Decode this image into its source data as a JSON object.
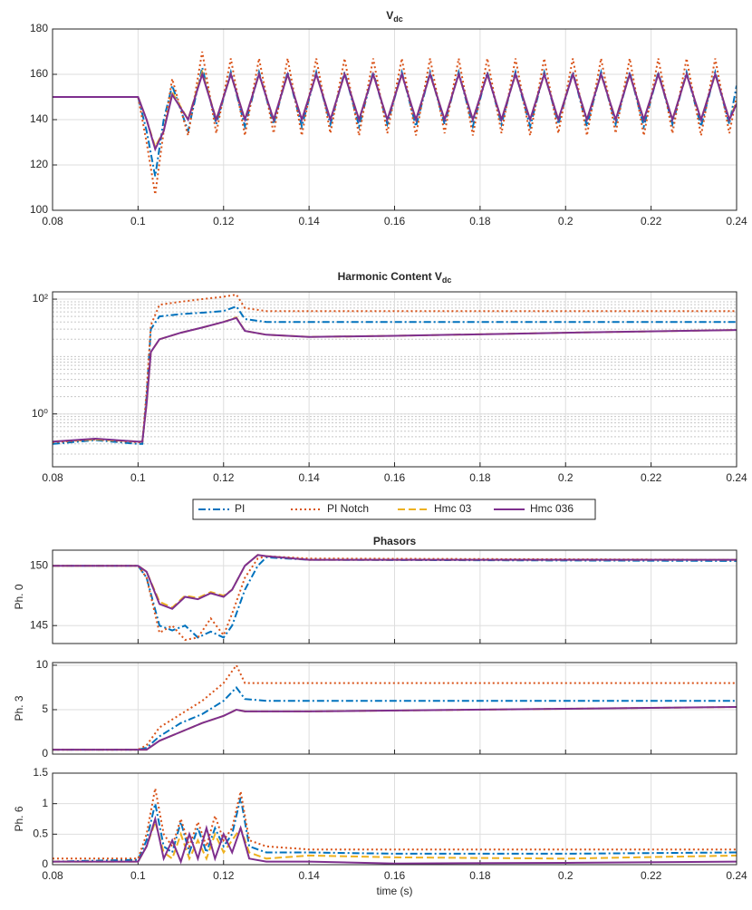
{
  "chart_data": [
    {
      "type": "line",
      "title": "V",
      "title_subscript": "dc",
      "x": [
        0.08,
        0.09,
        0.1,
        0.102,
        0.104,
        0.106,
        0.108,
        0.1117,
        0.115,
        0.1183,
        0.1217,
        0.125,
        0.1283,
        0.1317,
        0.135,
        0.1383,
        0.1417,
        0.145,
        0.1483,
        0.1517,
        0.155,
        0.1583,
        0.1617,
        0.165,
        0.1683,
        0.1717,
        0.175,
        0.1783,
        0.1817,
        0.185,
        0.1883,
        0.1917,
        0.195,
        0.1983,
        0.2017,
        0.205,
        0.2083,
        0.2117,
        0.215,
        0.2183,
        0.2217,
        0.225,
        0.2283,
        0.2317,
        0.235,
        0.2383,
        0.24
      ],
      "series": [
        {
          "name": "PI",
          "color": "#0072BD",
          "style": "dashdot",
          "values": [
            150,
            150,
            150,
            135,
            115,
            140,
            155,
            135,
            163,
            138,
            161,
            137,
            161,
            138,
            161,
            137,
            161,
            138,
            161,
            137,
            161,
            138,
            161,
            137,
            161,
            138,
            161,
            137,
            161,
            138,
            161,
            137,
            161,
            138,
            161,
            137,
            161,
            138,
            161,
            137,
            161,
            138,
            161,
            137,
            161,
            138,
            155
          ]
        },
        {
          "name": "PI Notch",
          "color": "#D95319",
          "style": "dotted",
          "values": [
            150,
            150,
            150,
            130,
            107,
            135,
            158,
            133,
            170,
            134,
            167,
            133,
            167,
            134,
            167,
            133,
            167,
            134,
            167,
            133,
            167,
            134,
            167,
            133,
            167,
            134,
            167,
            133,
            167,
            134,
            167,
            133,
            167,
            134,
            167,
            133,
            167,
            134,
            167,
            133,
            167,
            134,
            167,
            133,
            167,
            134,
            150
          ]
        },
        {
          "name": "Hmc 03",
          "color": "#EDB120",
          "style": "dashed",
          "values": [
            150,
            150,
            150,
            140,
            128,
            135,
            152,
            140,
            161,
            140,
            160,
            140,
            160,
            140,
            160,
            140,
            160,
            140,
            160,
            140,
            160,
            140,
            160,
            140,
            160,
            140,
            160,
            140,
            160,
            140,
            160,
            140,
            160,
            140,
            160,
            140,
            160,
            140,
            160,
            140,
            160,
            140,
            160,
            140,
            160,
            140,
            148
          ]
        },
        {
          "name": "Hmc 036",
          "color": "#7E2F8E",
          "style": "solid",
          "values": [
            150,
            150,
            150,
            140,
            127,
            135,
            151,
            140,
            160,
            140,
            160,
            140,
            160,
            140,
            160,
            140,
            160,
            140,
            160,
            140,
            160,
            140,
            160,
            140,
            160,
            140,
            160,
            140,
            160,
            140,
            160,
            140,
            160,
            140,
            160,
            140,
            160,
            140,
            160,
            140,
            160,
            140,
            160,
            140,
            160,
            140,
            147
          ]
        }
      ],
      "xlim": [
        0.08,
        0.24
      ],
      "xticks": [
        0.08,
        0.1,
        0.12,
        0.14,
        0.16,
        0.18,
        0.2,
        0.22,
        0.24
      ],
      "ylim": [
        100,
        180
      ],
      "yticks": [
        100,
        120,
        140,
        160,
        180
      ],
      "grid": true,
      "show_xtick_labels": true
    },
    {
      "type": "line",
      "title": "Harmonic Content V",
      "title_subscript": "dc",
      "x": [
        0.08,
        0.09,
        0.1,
        0.101,
        0.102,
        0.103,
        0.105,
        0.11,
        0.115,
        0.12,
        0.123,
        0.125,
        0.13,
        0.14,
        0.16,
        0.2,
        0.24
      ],
      "series": [
        {
          "name": "PI",
          "color": "#0072BD",
          "style": "dashdot",
          "values": [
            0.3,
            0.35,
            0.3,
            0.3,
            2,
            30,
            50,
            55,
            58,
            62,
            75,
            45,
            40,
            40,
            40,
            40,
            40
          ]
        },
        {
          "name": "PI Notch",
          "color": "#D95319",
          "style": "dotted",
          "values": [
            0.32,
            0.36,
            0.32,
            0.32,
            2.5,
            35,
            80,
            90,
            100,
            110,
            120,
            70,
            62,
            62,
            62,
            62,
            62
          ]
        },
        {
          "name": "Hmc 03",
          "color": "#EDB120",
          "style": "dashed",
          "values": [
            0.33,
            0.36,
            0.33,
            0.33,
            1.5,
            12,
            20,
            26,
            32,
            40,
            48,
            28,
            24,
            22,
            23,
            26,
            29
          ]
        },
        {
          "name": "Hmc 036",
          "color": "#7E2F8E",
          "style": "solid",
          "values": [
            0.33,
            0.37,
            0.33,
            0.33,
            1.5,
            12,
            20,
            26,
            32,
            40,
            47,
            28,
            24,
            22,
            23,
            26,
            29
          ]
        }
      ],
      "xlim": [
        0.08,
        0.24
      ],
      "xticks": [
        0.08,
        0.1,
        0.12,
        0.14,
        0.16,
        0.18,
        0.2,
        0.22,
        0.24
      ],
      "ylim": [
        0.12,
        134
      ],
      "yticks": [
        {
          "value": 1,
          "label": "10⁰"
        },
        {
          "value": 100,
          "label": "10²"
        }
      ],
      "log_y": true,
      "grid": true,
      "minor_grid": true,
      "show_xtick_labels": true,
      "legend": "south"
    },
    {
      "type": "line",
      "title": "Phasors",
      "ylabel": "Ph. 0",
      "x": [
        0.08,
        0.1,
        0.102,
        0.105,
        0.108,
        0.111,
        0.114,
        0.117,
        0.12,
        0.122,
        0.125,
        0.128,
        0.13,
        0.14,
        0.24
      ],
      "series": [
        {
          "name": "PI",
          "color": "#0072BD",
          "style": "dashdot",
          "values": [
            150,
            150,
            149,
            145,
            144.6,
            145,
            144,
            144.5,
            144,
            145,
            148,
            150,
            150.7,
            150.5,
            150.4
          ]
        },
        {
          "name": "PI Notch",
          "color": "#D95319",
          "style": "dotted",
          "values": [
            150,
            150,
            149,
            144.4,
            145,
            143.8,
            144,
            145.6,
            144.2,
            146,
            149,
            150.6,
            150.8,
            150.6,
            150.5
          ]
        },
        {
          "name": "Hmc 03",
          "color": "#EDB120",
          "style": "dashed",
          "values": [
            150,
            150,
            149.5,
            147,
            146.5,
            147.5,
            147.3,
            147.8,
            147.5,
            148,
            150,
            150.9,
            150.8,
            150.5,
            150.5
          ]
        },
        {
          "name": "Hmc 036",
          "color": "#7E2F8E",
          "style": "solid",
          "values": [
            150,
            150,
            149.5,
            146.8,
            146.4,
            147.4,
            147.2,
            147.7,
            147.4,
            148,
            150,
            150.9,
            150.8,
            150.5,
            150.5
          ]
        }
      ],
      "xlim": [
        0.08,
        0.24
      ],
      "xticks": [
        0.08,
        0.1,
        0.12,
        0.14,
        0.16,
        0.18,
        0.2,
        0.22,
        0.24
      ],
      "ylim": [
        143.5,
        151.3
      ],
      "yticks": [
        145,
        150
      ],
      "grid": true,
      "show_xtick_labels": false
    },
    {
      "type": "line",
      "ylabel": "Ph. 3",
      "x": [
        0.08,
        0.1,
        0.102,
        0.105,
        0.11,
        0.115,
        0.12,
        0.123,
        0.125,
        0.13,
        0.14,
        0.24
      ],
      "series": [
        {
          "name": "PI",
          "color": "#0072BD",
          "style": "dashdot",
          "values": [
            0.5,
            0.5,
            0.7,
            2,
            3.5,
            4.5,
            6,
            7.5,
            6.2,
            6,
            6,
            6
          ]
        },
        {
          "name": "PI Notch",
          "color": "#D95319",
          "style": "dotted",
          "values": [
            0.5,
            0.5,
            1,
            3,
            4.5,
            6,
            8,
            10,
            8,
            8,
            8,
            8
          ]
        },
        {
          "name": "Hmc 03",
          "color": "#EDB120",
          "style": "dashed",
          "values": [
            0.5,
            0.5,
            0.5,
            1.5,
            2.5,
            3.5,
            4.3,
            5,
            4.8,
            4.8,
            4.8,
            5.3
          ]
        },
        {
          "name": "Hmc 036",
          "color": "#7E2F8E",
          "style": "solid",
          "values": [
            0.5,
            0.5,
            0.5,
            1.5,
            2.5,
            3.5,
            4.3,
            5,
            4.8,
            4.8,
            4.8,
            5.3
          ]
        }
      ],
      "xlim": [
        0.08,
        0.24
      ],
      "xticks": [
        0.08,
        0.1,
        0.12,
        0.14,
        0.16,
        0.18,
        0.2,
        0.22,
        0.24
      ],
      "ylim": [
        0,
        10.3
      ],
      "yticks": [
        0,
        5,
        10
      ],
      "grid": true,
      "show_xtick_labels": false
    },
    {
      "type": "line",
      "ylabel": "Ph. 6",
      "xlabel": "time (s)",
      "x": [
        0.08,
        0.1,
        0.102,
        0.104,
        0.106,
        0.108,
        0.11,
        0.112,
        0.114,
        0.116,
        0.118,
        0.12,
        0.122,
        0.124,
        0.126,
        0.13,
        0.14,
        0.16,
        0.2,
        0.24
      ],
      "series": [
        {
          "name": "PI",
          "color": "#0072BD",
          "style": "dashdot",
          "values": [
            0.05,
            0.08,
            0.4,
            1.0,
            0.3,
            0.2,
            0.7,
            0.2,
            0.6,
            0.2,
            0.6,
            0.3,
            0.5,
            1.1,
            0.3,
            0.2,
            0.2,
            0.18,
            0.18,
            0.2
          ]
        },
        {
          "name": "PI Notch",
          "color": "#D95319",
          "style": "dotted",
          "values": [
            0.1,
            0.1,
            0.5,
            1.25,
            0.5,
            0.3,
            0.75,
            0.3,
            0.7,
            0.3,
            0.8,
            0.4,
            0.6,
            1.2,
            0.4,
            0.3,
            0.25,
            0.25,
            0.25,
            0.25
          ]
        },
        {
          "name": "Hmc 03",
          "color": "#EDB120",
          "style": "dashed",
          "values": [
            0.05,
            0.05,
            0.3,
            0.7,
            0.2,
            0.1,
            0.5,
            0.1,
            0.4,
            0.1,
            0.5,
            0.2,
            0.4,
            0.6,
            0.2,
            0.1,
            0.15,
            0.12,
            0.1,
            0.15
          ]
        },
        {
          "name": "Hmc 036",
          "color": "#7E2F8E",
          "style": "solid",
          "values": [
            0.05,
            0.05,
            0.3,
            0.75,
            0.1,
            0.4,
            0.05,
            0.5,
            0.1,
            0.6,
            0.1,
            0.5,
            0.2,
            0.6,
            0.1,
            0.05,
            0.05,
            0.02,
            0.03,
            0.05
          ]
        }
      ],
      "xlim": [
        0.08,
        0.24
      ],
      "xticks": [
        0.08,
        0.1,
        0.12,
        0.14,
        0.16,
        0.18,
        0.2,
        0.22,
        0.24
      ],
      "ylim": [
        0,
        1.5
      ],
      "yticks": [
        0,
        0.5,
        1,
        1.5
      ],
      "grid": true,
      "show_xtick_labels": true
    }
  ]
}
